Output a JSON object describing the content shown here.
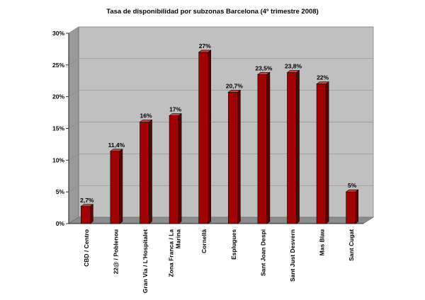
{
  "chart_data": {
    "type": "bar",
    "title": "Tasa de disponibilidad por subzonas Barcelona (4º trimestre 2008)",
    "xlabel": "",
    "ylabel": "",
    "ylim": [
      0,
      30
    ],
    "yticks": [
      "0%",
      "5%",
      "10%",
      "15%",
      "20%",
      "25%",
      "30%"
    ],
    "ytick_values": [
      0,
      5,
      10,
      15,
      20,
      25,
      30
    ],
    "grid": true,
    "legend": "none",
    "categories": [
      [
        "CBD / Centro"
      ],
      [
        "22@ / Poblenou"
      ],
      [
        "Gran Via / L'Hospitalet"
      ],
      [
        "Zona Franca / La",
        "Marina"
      ],
      [
        "Cornellà"
      ],
      [
        "Esplugues"
      ],
      [
        "Sant Joan Despi"
      ],
      [
        "Sant Just Desvern"
      ],
      [
        "Mas Blau"
      ],
      [
        "Sant Cugat"
      ]
    ],
    "values": [
      2.7,
      11.4,
      16,
      17,
      27,
      20.7,
      23.5,
      23.8,
      22,
      5
    ],
    "data_labels": [
      "2,7%",
      "11,4%",
      "16%",
      "17%",
      "27%",
      "20,7%",
      "23,5%",
      "23,8%",
      "22%",
      "5%"
    ],
    "colors": {
      "bar_front": "#a00000",
      "bar_side": "#600000",
      "bar_top": "#d04040",
      "plot_back": "#c0c0c0",
      "plot_floor": "#8c8c8c",
      "plot_wall": "#9a9a9a",
      "grid": "#8a8a8a"
    }
  }
}
